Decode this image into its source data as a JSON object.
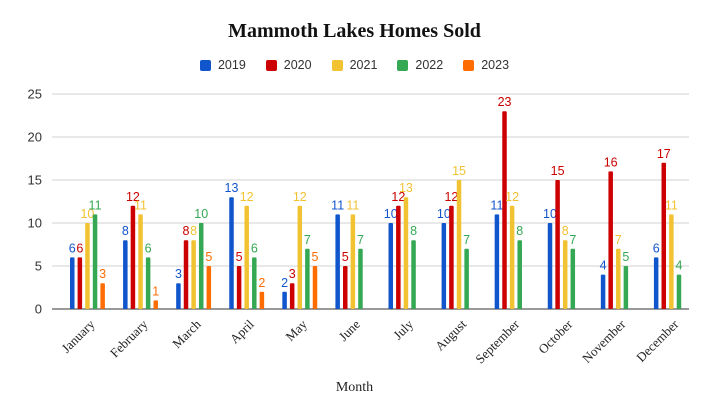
{
  "chart_data": {
    "type": "bar",
    "title": "Mammoth Lakes Homes Sold",
    "xlabel": "Month",
    "ylabel": "",
    "ylim": [
      0,
      25
    ],
    "yticks": [
      0,
      5,
      10,
      15,
      20,
      25
    ],
    "grid": true,
    "legend_position": "top",
    "categories": [
      "January",
      "February",
      "March",
      "April",
      "May",
      "June",
      "July",
      "August",
      "September",
      "October",
      "November",
      "December"
    ],
    "series": [
      {
        "name": "2019",
        "color": "#1155cc",
        "values": [
          6,
          8,
          3,
          13,
          2,
          11,
          10,
          10,
          11,
          10,
          4,
          6
        ]
      },
      {
        "name": "2020",
        "color": "#cc0000",
        "values": [
          6,
          12,
          8,
          5,
          3,
          5,
          12,
          12,
          23,
          15,
          16,
          17
        ]
      },
      {
        "name": "2021",
        "color": "#f1c232",
        "values": [
          10,
          11,
          8,
          12,
          12,
          11,
          13,
          15,
          12,
          8,
          7,
          11
        ]
      },
      {
        "name": "2022",
        "color": "#34a853",
        "values": [
          11,
          6,
          10,
          6,
          7,
          7,
          8,
          7,
          8,
          7,
          5,
          4
        ]
      },
      {
        "name": "2023",
        "color": "#ff6d01",
        "values": [
          3,
          1,
          5,
          2,
          5,
          null,
          null,
          null,
          null,
          null,
          null,
          null
        ]
      }
    ]
  }
}
